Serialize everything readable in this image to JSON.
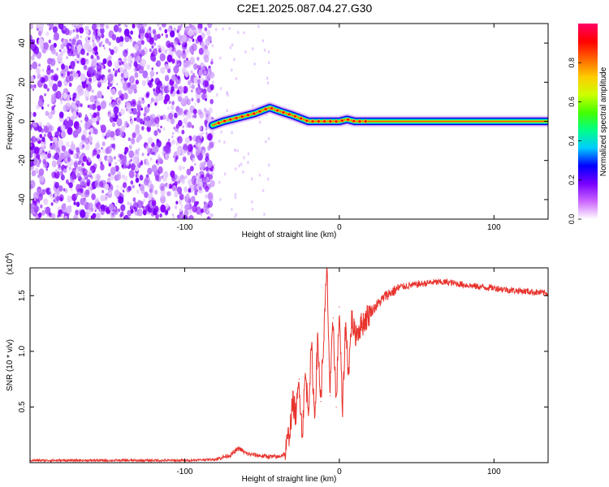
{
  "title": "C2E1.2025.087.04.27.G30",
  "chart_data": [
    {
      "type": "heatmap",
      "name": "spectrogram",
      "xlabel": "Height of straight line (km)",
      "ylabel": "Frequency (Hz)",
      "xlim": [
        -200,
        135
      ],
      "ylim": [
        -50,
        50
      ],
      "xticks": [
        -100,
        0,
        100
      ],
      "xtick_labels": [
        "-100",
        "0",
        "100"
      ],
      "yticks": [
        -40,
        -20,
        0,
        20,
        40
      ],
      "ytick_labels": [
        "-40",
        "-20",
        "0",
        "20",
        "40"
      ],
      "colorbar": {
        "label": "Normalized spectral amplitude",
        "range": [
          0,
          1
        ],
        "ticks": [
          0.0,
          0.2,
          0.4,
          0.6,
          0.8
        ],
        "tick_labels": [
          "0.0",
          "0.2",
          "0.4",
          "0.6",
          "0.8"
        ],
        "colormap": [
          "#ffffff",
          "#cc66ff",
          "#7700ff",
          "#0000ff",
          "#00ccff",
          "#00ff88",
          "#44ff00",
          "#ccff00",
          "#ffcc00",
          "#ff6600",
          "#ff0000",
          "#ff0066"
        ]
      },
      "ridge": {
        "x": [
          -82,
          -75,
          -65,
          -55,
          -45,
          -38,
          -30,
          -20,
          -10,
          0,
          5,
          10,
          15,
          30,
          60,
          100,
          135
        ],
        "y": [
          -2,
          0,
          2,
          4,
          7,
          5,
          3,
          0,
          0,
          0,
          1,
          0,
          0,
          0,
          0,
          0,
          0
        ]
      },
      "noise_region_x": [
        -200,
        -82
      ]
    },
    {
      "type": "line",
      "name": "snr",
      "xlabel": "Height of straight line (km)",
      "ylabel": "SNR (10 * v/v)",
      "y_multiplier": "(x10^4)",
      "xlim": [
        -200,
        135
      ],
      "ylim": [
        0,
        1.75
      ],
      "xticks": [
        -100,
        0,
        100
      ],
      "xtick_labels": [
        "-100",
        "0",
        "100"
      ],
      "yticks": [
        0.5,
        1.0,
        1.5
      ],
      "ytick_labels": [
        "0.5",
        "1.0",
        "1.5"
      ],
      "color": "#e8332d",
      "series": [
        {
          "x": [
            -200,
            -150,
            -100,
            -80,
            -70,
            -65,
            -60,
            -50,
            -40,
            -35,
            -32,
            -30,
            -28,
            -26,
            -24,
            -22,
            -20,
            -18,
            -16,
            -14,
            -12,
            -10,
            -8,
            -6,
            -4,
            -2,
            0,
            2,
            4,
            6,
            8,
            10,
            15,
            20,
            30,
            40,
            50,
            60,
            70,
            80,
            90,
            100,
            110,
            120,
            135
          ],
          "y": [
            0.02,
            0.02,
            0.02,
            0.03,
            0.07,
            0.13,
            0.08,
            0.06,
            0.05,
            0.08,
            0.3,
            0.55,
            0.42,
            0.75,
            0.25,
            0.8,
            0.48,
            1.05,
            0.4,
            1.1,
            0.55,
            1.15,
            1.75,
            0.6,
            1.3,
            0.5,
            1.4,
            0.42,
            1.25,
            0.8,
            1.3,
            1.15,
            1.25,
            1.35,
            1.5,
            1.58,
            1.6,
            1.62,
            1.62,
            1.6,
            1.58,
            1.57,
            1.55,
            1.54,
            1.52
          ]
        }
      ]
    }
  ]
}
